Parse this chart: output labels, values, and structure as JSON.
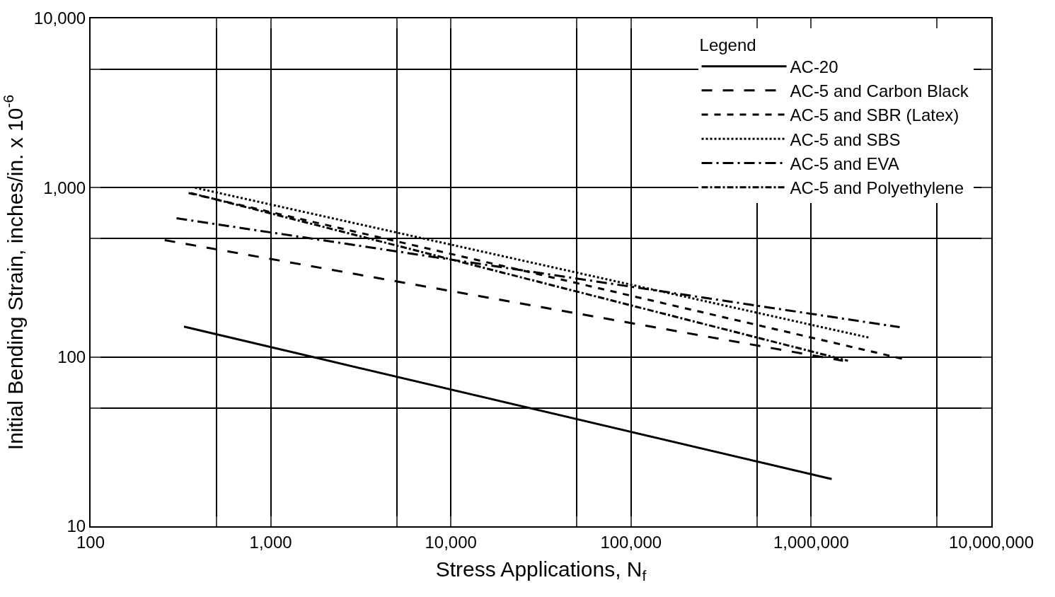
{
  "chart_data": {
    "type": "line",
    "xlabel": "Stress Applications, N$_{f}$",
    "ylabel": "Initial Bending Strain, inches/in. x 10$^{-6}$",
    "legend_title": "Legend",
    "log": "xy",
    "grid": true,
    "legend": "top right",
    "marker": "none",
    "xlim": [
      100,
      10000000
    ],
    "ylim": [
      10,
      10000
    ],
    "xticks": [
      {
        "value": 100,
        "label": "100"
      },
      {
        "value": 500,
        "label": null
      },
      {
        "value": 1000,
        "label": "1,000"
      },
      {
        "value": 5000,
        "label": null
      },
      {
        "value": 10000,
        "label": "10,000"
      },
      {
        "value": 50000,
        "label": null
      },
      {
        "value": 100000,
        "label": "100,000"
      },
      {
        "value": 500000,
        "label": null
      },
      {
        "value": 1000000,
        "label": "1,000,000"
      },
      {
        "value": 5000000,
        "label": null
      },
      {
        "value": 10000000,
        "label": "10,000,000"
      }
    ],
    "yticks": [
      10,
      {
        "value": 50,
        "label": null
      },
      100,
      {
        "value": 500,
        "label": null
      },
      {
        "value": 1000,
        "label": "1,000"
      },
      {
        "value": 5000,
        "label": null
      },
      {
        "value": 10000,
        "label": "10,000"
      }
    ],
    "series": [
      {
        "name": "AC-20",
        "color": "#000000",
        "line_style": "solid",
        "x": [
          330,
          1300000
        ],
        "values": [
          151,
          19
        ]
      },
      {
        "name": "AC-5 and Carbon Black",
        "color": "#000000",
        "line_style": "long dashed",
        "x": [
          258,
          1500000
        ],
        "values": [
          490,
          95
        ]
      },
      {
        "name": "AC-5 and SBR (Latex)",
        "color": "#000000",
        "line_style": "dashed",
        "x": [
          350,
          3300000
        ],
        "values": [
          930,
          97
        ]
      },
      {
        "name": "AC-5 and SBS",
        "color": "#000000",
        "line_style": "dotted",
        "x": [
          380,
          2100000
        ],
        "values": [
          1000,
          130
        ]
      },
      {
        "name": "AC-5 and EVA",
        "color": "#000000",
        "line_style": "dash-dot",
        "x": [
          300,
          3100000
        ],
        "values": [
          660,
          150
        ]
      },
      {
        "name": "AC-5 and Polyethylene",
        "color": "#000000",
        "line_style": "dash-dot-dot",
        "x": [
          360,
          1600000
        ],
        "values": [
          930,
          95
        ]
      }
    ]
  }
}
